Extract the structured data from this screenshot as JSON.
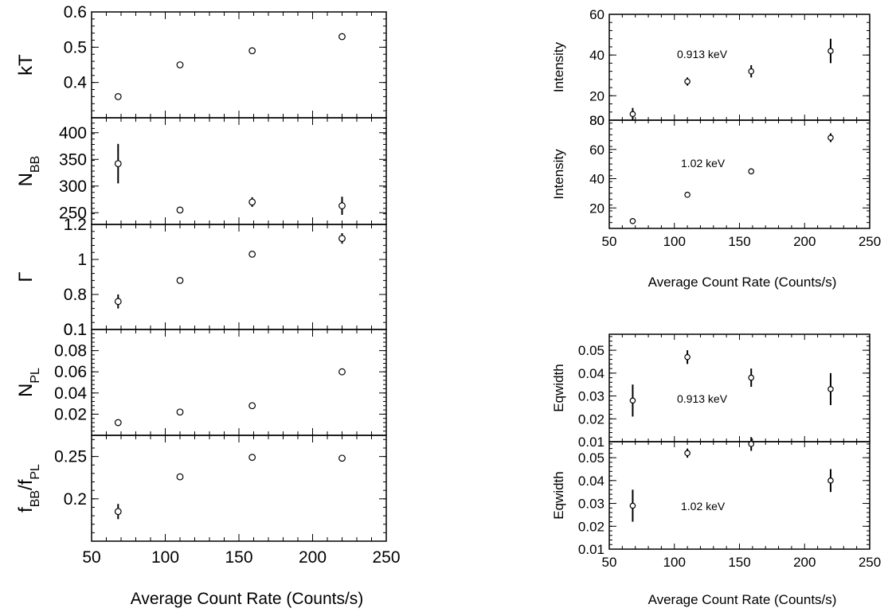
{
  "figure": {
    "left_xlabel": "Average Count Rate (Counts/s)",
    "right_top_xlabel": "Average Count Rate (Counts/s)",
    "right_bottom_xlabel": "Average Count Rate (Counts/s)",
    "x_ticks": [
      "50",
      "100",
      "150",
      "200",
      "250"
    ],
    "colors": {
      "axes": "#000000",
      "markers": "#000000",
      "background": "#ffffff"
    }
  },
  "chart_data": [
    {
      "type": "scatter",
      "id": "kT",
      "ylabel": "kT",
      "ylabel_sub": "",
      "xlim": [
        50,
        250
      ],
      "ylim": [
        0.3,
        0.6
      ],
      "yticks": [
        0.4,
        0.5,
        0.6
      ],
      "ytick_labels": [
        "0.4",
        "0.5",
        "0.6"
      ],
      "x": [
        68,
        110,
        159,
        220
      ],
      "y": [
        0.36,
        0.45,
        0.49,
        0.53
      ],
      "yerr": [
        0.007,
        0.005,
        0.006,
        0.007
      ],
      "annotation": ""
    },
    {
      "type": "scatter",
      "id": "NBB",
      "ylabel": "N",
      "ylabel_sub": "BB",
      "xlim": [
        50,
        250
      ],
      "ylim": [
        228,
        428
      ],
      "yticks": [
        250,
        300,
        350,
        400
      ],
      "ytick_labels": [
        "250",
        "300",
        "350",
        "400"
      ],
      "x": [
        68,
        110,
        159,
        220
      ],
      "y": [
        342,
        255,
        270,
        263
      ],
      "yerr": [
        37,
        4,
        9,
        17
      ],
      "annotation": ""
    },
    {
      "type": "scatter",
      "id": "Gamma",
      "ylabel": "Γ",
      "ylabel_sub": "",
      "xlim": [
        50,
        250
      ],
      "ylim": [
        0.6,
        1.2
      ],
      "yticks": [
        0.8,
        1.0,
        1.2
      ],
      "ytick_labels": [
        "0.8",
        "1",
        "1.2"
      ],
      "x": [
        68,
        110,
        159,
        220
      ],
      "y": [
        0.76,
        0.88,
        1.03,
        1.12
      ],
      "yerr": [
        0.04,
        0.015,
        0.015,
        0.03
      ],
      "annotation": ""
    },
    {
      "type": "scatter",
      "id": "NPL",
      "ylabel": "N",
      "ylabel_sub": "PL",
      "xlim": [
        50,
        250
      ],
      "ylim": [
        0.0,
        0.1
      ],
      "yticks": [
        0.02,
        0.04,
        0.06,
        0.08,
        0.1
      ],
      "ytick_labels": [
        "0.02",
        "0.04",
        "0.06",
        "0.08",
        "0.1"
      ],
      "x": [
        68,
        110,
        159,
        220
      ],
      "y": [
        0.012,
        0.022,
        0.028,
        0.06
      ],
      "yerr": [
        0.001,
        0.001,
        0.001,
        0.002
      ],
      "annotation": ""
    },
    {
      "type": "scatter",
      "id": "ratio",
      "ylabel": "f",
      "ylabel_sub": "BB",
      "ylabel_mid": "/f",
      "ylabel_sub2": "PL",
      "xlim": [
        50,
        250
      ],
      "ylim": [
        0.15,
        0.275
      ],
      "yticks": [
        0.2,
        0.25
      ],
      "ytick_labels": [
        "0.2",
        "0.25"
      ],
      "x": [
        68,
        110,
        159,
        220
      ],
      "y": [
        0.185,
        0.226,
        0.249,
        0.248
      ],
      "yerr": [
        0.009,
        0.002,
        0.002,
        0.002
      ],
      "annotation": ""
    },
    {
      "type": "scatter",
      "id": "I0913",
      "ylabel": "Intensity",
      "ylabel_sub": "",
      "xlim": [
        50,
        250
      ],
      "ylim": [
        8,
        60
      ],
      "yticks": [
        20,
        40,
        60
      ],
      "ytick_labels": [
        "20",
        "40",
        "60"
      ],
      "x": [
        68,
        110,
        159,
        220
      ],
      "y": [
        11,
        27,
        32,
        42
      ],
      "yerr": [
        3,
        2,
        3,
        6
      ],
      "annotation": "0.913 keV"
    },
    {
      "type": "scatter",
      "id": "I102",
      "ylabel": "Intensity",
      "ylabel_sub": "",
      "xlim": [
        50,
        250
      ],
      "ylim": [
        6,
        80
      ],
      "yticks": [
        20,
        40,
        60,
        80
      ],
      "ytick_labels": [
        "20",
        "40",
        "60",
        "80"
      ],
      "x": [
        68,
        110,
        159,
        220
      ],
      "y": [
        11,
        29,
        45,
        68
      ],
      "yerr": [
        1.5,
        1.5,
        2,
        3
      ],
      "annotation": "1.02 keV"
    },
    {
      "type": "scatter",
      "id": "EW0913",
      "ylabel": "Eqwidth",
      "ylabel_sub": "",
      "xlim": [
        50,
        250
      ],
      "ylim": [
        0.01,
        0.057
      ],
      "yticks": [
        0.02,
        0.03,
        0.04,
        0.05
      ],
      "ytick_labels": [
        "0.02",
        "0.03",
        "0.04",
        "0.05"
      ],
      "x": [
        68,
        110,
        159,
        220
      ],
      "y": [
        0.028,
        0.047,
        0.038,
        0.033
      ],
      "yerr": [
        0.007,
        0.003,
        0.004,
        0.007
      ],
      "annotation": "0.913 keV"
    },
    {
      "type": "scatter",
      "id": "EW102",
      "ylabel": "Eqwidth",
      "ylabel_sub": "",
      "xlim": [
        50,
        250
      ],
      "ylim": [
        0.01,
        0.057
      ],
      "yticks": [
        0.01,
        0.02,
        0.03,
        0.04,
        0.05
      ],
      "ytick_labels": [
        "0.01",
        "0.02",
        "0.03",
        "0.04",
        "0.05"
      ],
      "x": [
        68,
        110,
        159,
        220
      ],
      "y": [
        0.029,
        0.052,
        0.056,
        0.04
      ],
      "yerr": [
        0.007,
        0.002,
        0.003,
        0.005
      ],
      "annotation": "1.02 keV"
    },
    {
      "type": "axis-label-stub",
      "id": "stacked-boundaries",
      "ylabel": "",
      "ylabel_sub": "",
      "boundary_labels": {
        "left_gamma_nPL": "0.1",
        "right_I_top": "80",
        "right_EW_top": "0.01"
      }
    }
  ]
}
